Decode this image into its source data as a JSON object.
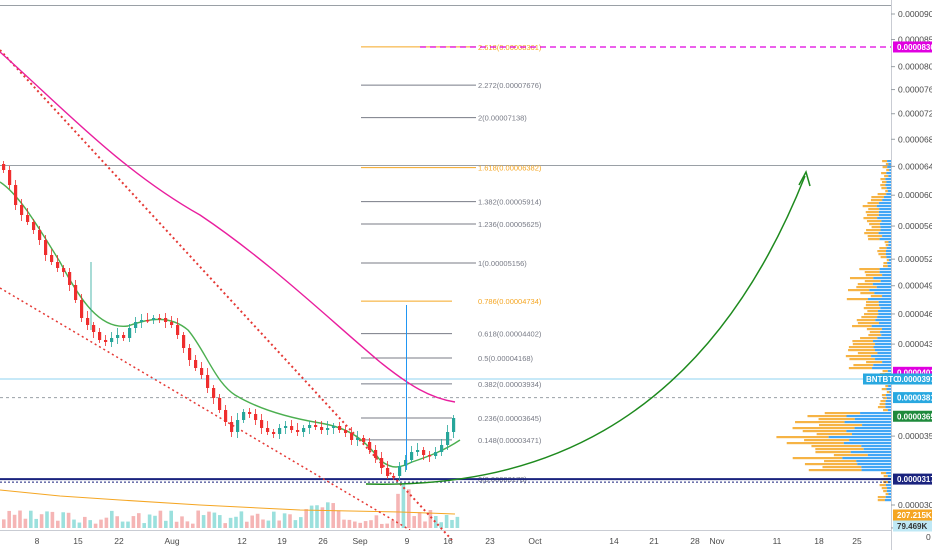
{
  "chart_data": {
    "type": "candlestick",
    "symbol": "BNTBTC",
    "price_axis": {
      "ticks": [
        "0.00009000",
        "0.00008500",
        "0.00008000",
        "0.00007600",
        "0.00007200",
        "0.00006800",
        "0.00006400",
        "0.00006000",
        "0.00005600",
        "0.00005200",
        "0.00004900",
        "0.00004600",
        "0.00004300",
        "0.00004000",
        "0.00003500",
        "0.00003000",
        "0.00002850"
      ],
      "tick_values": [
        9e-05,
        8.5e-05,
        8e-05,
        7.6e-05,
        7.2e-05,
        6.8e-05,
        6.4e-05,
        6e-05,
        5.6e-05,
        5.2e-05,
        4.9e-05,
        4.6e-05,
        4.3e-05,
        4e-05,
        3.5e-05,
        3e-05,
        2.85e-05
      ],
      "scale": "log",
      "range": [
        2.82e-05,
        9.15e-05
      ]
    },
    "time_axis": {
      "ticks": [
        "8",
        "15",
        "22",
        "Aug",
        "12",
        "19",
        "26",
        "Sep",
        "9",
        "16",
        "23",
        "Oct",
        "14",
        "21",
        "28",
        "Nov",
        "11",
        "18",
        "25"
      ]
    },
    "fib_levels": [
      {
        "label": "0(0.00003178)",
        "value": 3.178e-05,
        "color": "#787b86"
      },
      {
        "label": "0.148(0.00003471)",
        "value": 3.471e-05,
        "color": "#787b86"
      },
      {
        "label": "0.236(0.00003645)",
        "value": 3.645e-05,
        "color": "#787b86"
      },
      {
        "label": "0.382(0.00003934)",
        "value": 3.934e-05,
        "color": "#787b86"
      },
      {
        "label": "0.5(0.00004168)",
        "value": 4.168e-05,
        "color": "#787b86"
      },
      {
        "label": "0.618(0.00004402)",
        "value": 4.402e-05,
        "color": "#787b86"
      },
      {
        "label": "0.786(0.00004734)",
        "value": 4.734e-05,
        "color": "#f5a623"
      },
      {
        "label": "1(0.00005156)",
        "value": 5.156e-05,
        "color": "#787b86"
      },
      {
        "label": "1.236(0.00005625)",
        "value": 5.625e-05,
        "color": "#787b86"
      },
      {
        "label": "1.382(0.00005914)",
        "value": 5.914e-05,
        "color": "#787b86"
      },
      {
        "label": "1.618(0.00006382)",
        "value": 6.382e-05,
        "color": "#f5a623"
      },
      {
        "label": "2(0.00007138)",
        "value": 7.138e-05,
        "color": "#787b86"
      },
      {
        "label": "2.272(0.00007676)",
        "value": 7.676e-05,
        "color": "#787b86"
      },
      {
        "label": "2.618(0.00008361)",
        "value": 8.361e-05,
        "color": "#f5a623"
      }
    ],
    "price_badges": [
      {
        "text": "0.00008360",
        "value": 8.36e-05,
        "bg": "#e000e0",
        "fg": "#ffffff"
      },
      {
        "text": "0.00004037",
        "value": 4.037e-05,
        "bg": "#e000e0",
        "fg": "#ffffff"
      },
      {
        "text": "0.00003977",
        "value": 3.977e-05,
        "bg": "#29a8e0",
        "fg": "#ffffff"
      },
      {
        "text": "0.00003815",
        "value": 3.815e-05,
        "bg": "#29a8e0",
        "fg": "#ffffff"
      },
      {
        "text": "0.00003659",
        "value": 3.659e-05,
        "bg": "#1e8a3c",
        "fg": "#ffffff"
      },
      {
        "text": "0.00003179",
        "value": 3.179e-05,
        "bg": "#1a237e",
        "fg": "#ffffff"
      }
    ],
    "volume_badges": [
      {
        "text": "207.215K",
        "bg": "#f5a623",
        "fg": "#ffffff"
      },
      {
        "text": "79.469K",
        "bg": "#bfe8f5",
        "fg": "#333333"
      }
    ],
    "small_label_zero": "0",
    "colors": {
      "up": "#26a69a",
      "down": "#ef2e2e",
      "ema_fast": "#4caf50",
      "ema_slow": "#e91e9e",
      "arrow": "#1e8a1e",
      "trend": "#e53935",
      "volume_profile": "#2196f3",
      "volume_profile_alt": "#f5a623"
    }
  }
}
